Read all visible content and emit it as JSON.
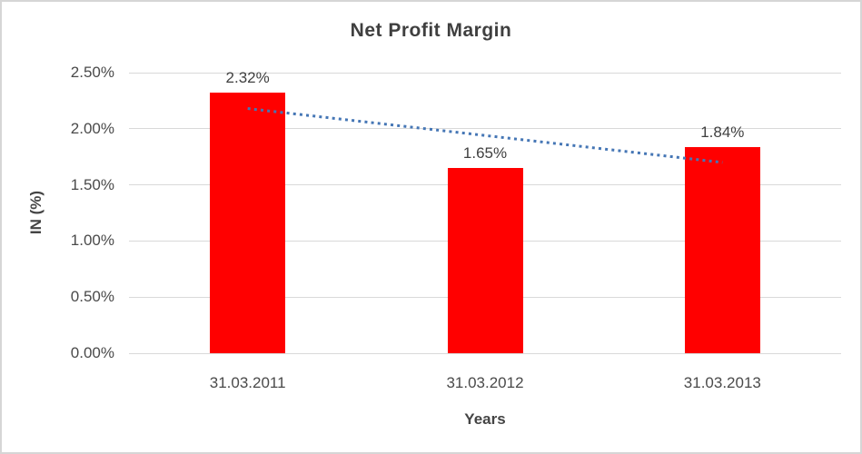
{
  "chart_data": {
    "type": "bar",
    "title": "Net Profit Margin",
    "xlabel": "Years",
    "ylabel": "IN (%)",
    "categories": [
      "31.03.2011",
      "31.03.2012",
      "31.03.2013"
    ],
    "values": [
      2.32,
      1.65,
      1.84
    ],
    "data_labels": [
      "2.32%",
      "1.65%",
      "1.84%"
    ],
    "ylim": [
      0,
      2.5
    ],
    "yticks": [
      0,
      0.5,
      1.0,
      1.5,
      2.0,
      2.5
    ],
    "ytick_labels": [
      "0.00%",
      "0.50%",
      "1.00%",
      "1.50%",
      "2.00%",
      "2.50%"
    ],
    "grid": true,
    "legend": "none",
    "bar_color": "#ff0000",
    "text_color": "#4a4a4a",
    "gridline_color": "#d9d9d9",
    "trendline": {
      "type": "linear",
      "style": "dotted",
      "color": "#4576b5",
      "start_value": 2.18,
      "end_value": 1.7
    }
  }
}
